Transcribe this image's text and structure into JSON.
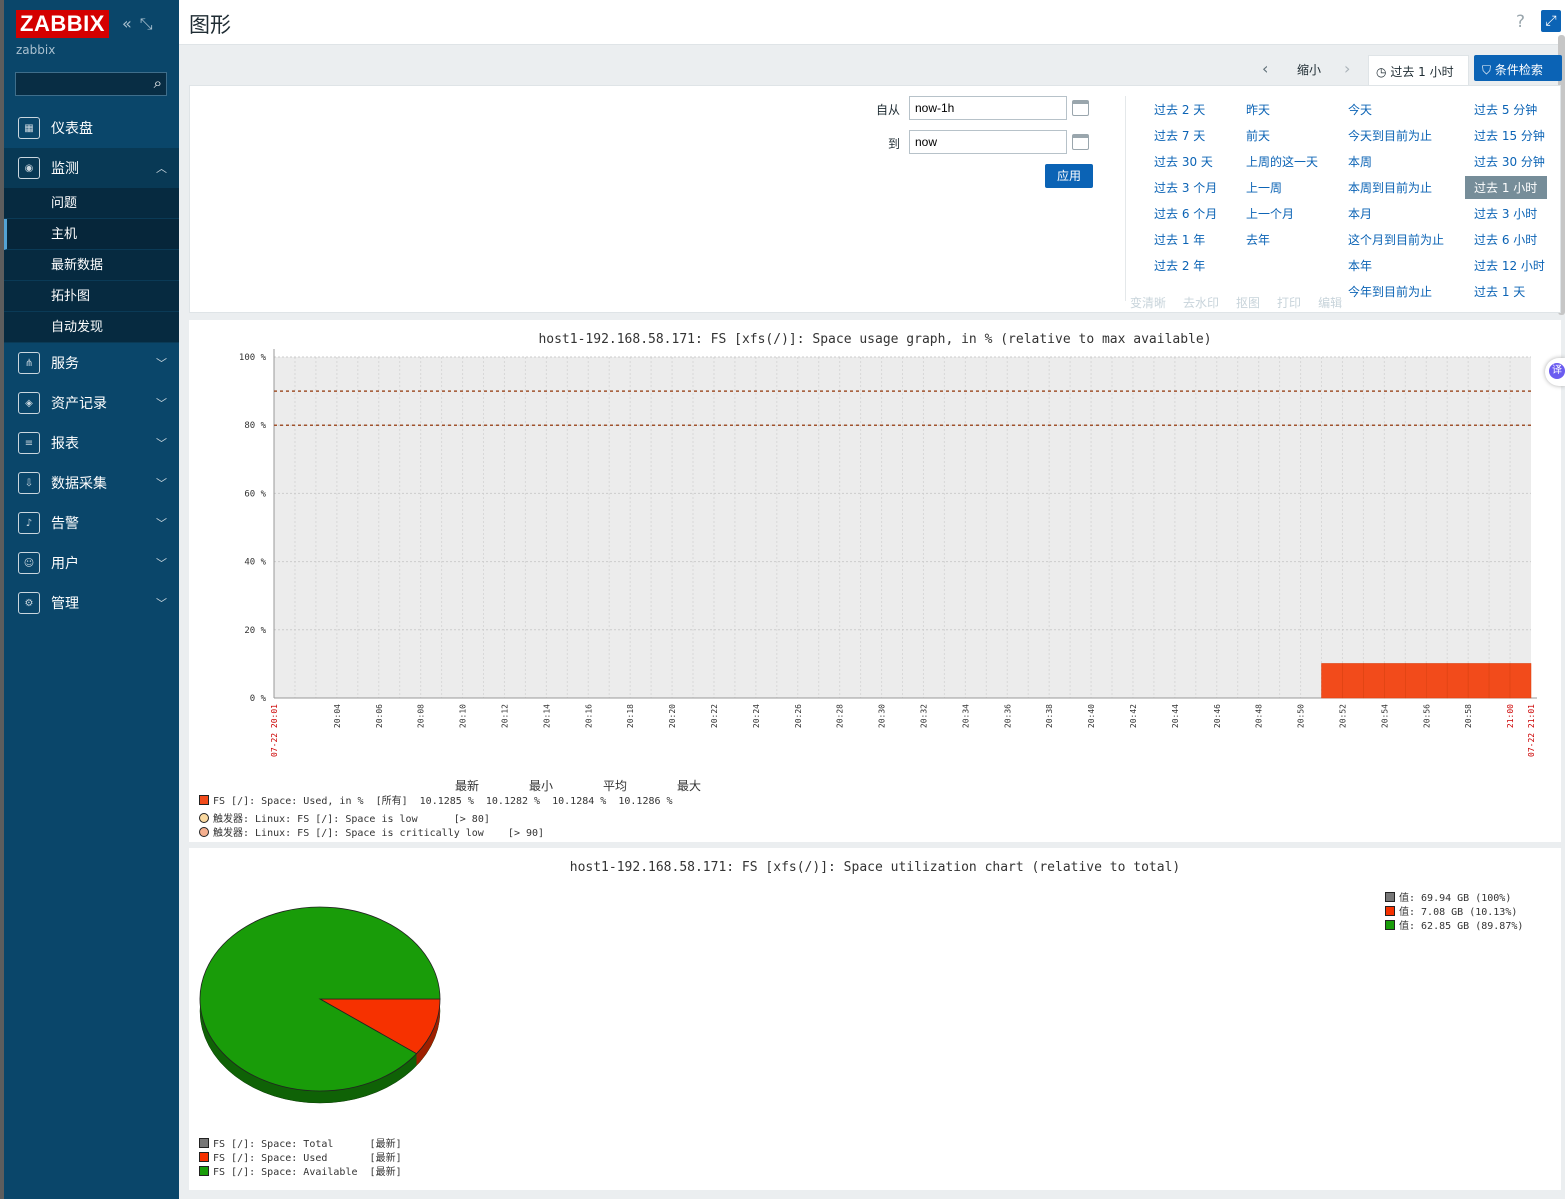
{
  "sidebar": {
    "logo": "ZABBIX",
    "server_name": "zabbix",
    "menu": [
      {
        "label": "仪表盘"
      },
      {
        "label": "监测"
      },
      {
        "label": "服务"
      },
      {
        "label": "资产记录"
      },
      {
        "label": "报表"
      },
      {
        "label": "数据采集"
      },
      {
        "label": "告警"
      },
      {
        "label": "用户"
      },
      {
        "label": "管理"
      }
    ],
    "submenu": [
      "问题",
      "主机",
      "最新数据",
      "拓扑图",
      "自动发现"
    ]
  },
  "header": {
    "title": "图形",
    "help": "?"
  },
  "filter_bar": {
    "zoom_out": "缩小",
    "period_tab": "过去 1 小时",
    "filter_tab": "条件检索"
  },
  "time_filter": {
    "from_label": "自从",
    "from_value": "now-1h",
    "to_label": "到",
    "to_value": "now",
    "apply": "应用"
  },
  "quick_ranges": {
    "col1": [
      "过去 2 天",
      "过去 7 天",
      "过去 30 天",
      "过去 3 个月",
      "过去 6 个月",
      "过去 1 年",
      "过去 2 年"
    ],
    "col2": [
      "昨天",
      "前天",
      "上周的这一天",
      "上一周",
      "上一个月",
      "去年"
    ],
    "col3": [
      "今天",
      "今天到目前为止",
      "本周",
      "本周到目前为止",
      "本月",
      "这个月到目前为止",
      "本年",
      "今年到目前为止"
    ],
    "col4": [
      "过去 5 分钟",
      "过去 15 分钟",
      "过去 30 分钟",
      "过去 1 小时",
      "过去 3 小时",
      "过去 6 小时",
      "过去 12 小时",
      "过去 1 天"
    ],
    "selected": "过去 1 小时"
  },
  "overlay_toolbar": [
    "变清晰",
    "去水印",
    "抠图",
    "打印",
    "编辑"
  ],
  "graph1": {
    "title": "host1-192.168.58.171: FS [xfs(/)]: Space usage graph, in % (relative to max available)",
    "legend_headers": [
      "最新",
      "最小",
      "平均",
      "最大"
    ],
    "item": {
      "name": "FS [/]: Space: Used, in %",
      "scope": "[所有]",
      "last": "10.1285 %",
      "min": "10.1282 %",
      "avg": "10.1284 %",
      "max": "10.1286 %"
    },
    "triggers": [
      {
        "prefix": "触发器",
        "name": ": Linux: FS [/]: Space is low",
        "cond": "[> 80]"
      },
      {
        "prefix": "触发器",
        "name": ": Linux: FS [/]: Space is critically low",
        "cond": "[> 90]"
      }
    ]
  },
  "chart_data": [
    {
      "type": "area",
      "title": "host1-192.168.58.171: FS [xfs(/)]: Space usage graph, in % (relative to max available)",
      "ylim": [
        0,
        100
      ],
      "y_ticks": [
        "0 %",
        "20 %",
        "40 %",
        "60 %",
        "80 %",
        "100 %"
      ],
      "x_ticks": [
        "07-22 20:01",
        "20:04",
        "20:06",
        "20:08",
        "20:10",
        "20:12",
        "20:14",
        "20:16",
        "20:18",
        "20:20",
        "20:22",
        "20:24",
        "20:26",
        "20:28",
        "20:30",
        "20:32",
        "20:34",
        "20:36",
        "20:38",
        "20:40",
        "20:42",
        "20:44",
        "20:46",
        "20:48",
        "20:50",
        "20:52",
        "20:54",
        "20:56",
        "20:58",
        "21:00",
        "07-22 21:01"
      ],
      "series": [
        {
          "name": "FS [/]: Space: Used, in %",
          "color": "#f24b1b",
          "start": "20:51",
          "end": "21:01",
          "value": 10.13
        }
      ],
      "thresholds": [
        {
          "value": 80,
          "color": "#a0522d"
        },
        {
          "value": 90,
          "color": "#a0522d"
        }
      ],
      "grid": true
    },
    {
      "type": "pie",
      "title": "host1-192.168.58.171: FS [xfs(/)]: Space utilization chart (relative to total)",
      "slices": [
        {
          "label": "FS [/]: Space: Used",
          "value": 7.08,
          "percent": 10.13,
          "color": "#f63100"
        },
        {
          "label": "FS [/]: Space: Available",
          "value": 62.85,
          "percent": 89.87,
          "color": "#199c09"
        }
      ],
      "total": {
        "label": "FS [/]: Space: Total",
        "value": 69.94,
        "color": "#777777"
      },
      "legend_right": [
        "值: 69.94 GB (100%)",
        "值: 7.08 GB (10.13%)",
        "值: 62.85 GB (89.87%)"
      ],
      "legend_bottom": [
        {
          "name": "FS [/]: Space: Total",
          "tag": "[最新]",
          "color": "#777777"
        },
        {
          "name": "FS [/]: Space: Used",
          "tag": "[最新]",
          "color": "#f63100"
        },
        {
          "name": "FS [/]: Space: Available",
          "tag": "[最新]",
          "color": "#199c09"
        }
      ]
    }
  ],
  "colors": {
    "sidebar": "#0a466a",
    "accent": "#0b63b5",
    "used": "#f24b1b",
    "available": "#199c09"
  }
}
